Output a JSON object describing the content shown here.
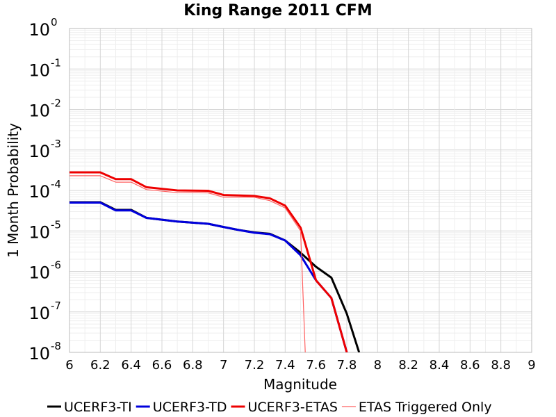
{
  "chart_data": {
    "type": "line",
    "title": "King Range 2011 CFM",
    "xlabel": "Magnitude",
    "ylabel": "1 Month Probability",
    "xlim": [
      6,
      9
    ],
    "ylim": [
      1e-08,
      1
    ],
    "y_scale": "log",
    "grid": true,
    "legend_position": "bottom",
    "x_ticks": [
      6,
      6.2,
      6.4,
      6.6,
      6.8,
      7,
      7.2,
      7.4,
      7.6,
      7.8,
      8,
      8.2,
      8.4,
      8.6,
      8.8,
      9
    ],
    "x_tick_labels": [
      "6",
      "6.2",
      "6.4",
      "6.6",
      "6.8",
      "7",
      "7.2",
      "7.4",
      "7.6",
      "7.8",
      "8",
      "8.2",
      "8.4",
      "8.6",
      "8.8",
      "9"
    ],
    "y_tick_exponents": [
      "0",
      "-1",
      "-2",
      "-3",
      "-4",
      "-5",
      "-6",
      "-7",
      "-8"
    ],
    "y_tick_base": "10",
    "series": [
      {
        "name": "UCERF3-TI",
        "color": "#000000",
        "width": 3,
        "x": [
          6.0,
          6.2,
          6.3,
          6.4,
          6.5,
          6.7,
          6.9,
          7.0,
          7.1,
          7.2,
          7.3,
          7.4,
          7.5,
          7.6,
          7.7,
          7.8,
          7.88
        ],
        "y": [
          5.1e-05,
          5.1e-05,
          3.3e-05,
          3.3e-05,
          2.1e-05,
          1.7e-05,
          1.5e-05,
          1.25e-05,
          1.05e-05,
          9.2e-06,
          8.5e-06,
          5.8e-06,
          2.9e-06,
          1.3e-06,
          7e-07,
          9e-08,
          1e-08
        ]
      },
      {
        "name": "UCERF3-TD",
        "color": "#0000dd",
        "width": 3,
        "x": [
          6.0,
          6.2,
          6.3,
          6.4,
          6.5,
          6.7,
          6.9,
          7.0,
          7.1,
          7.2,
          7.3,
          7.4,
          7.5,
          7.6,
          7.7,
          7.8
        ],
        "y": [
          5e-05,
          5e-05,
          3.2e-05,
          3.2e-05,
          2.1e-05,
          1.7e-05,
          1.5e-05,
          1.25e-05,
          1.05e-05,
          9e-06,
          8.3e-06,
          5.8e-06,
          2.5e-06,
          6e-07,
          2.2e-07,
          1e-08
        ]
      },
      {
        "name": "UCERF3-ETAS",
        "color": "#ee0000",
        "width": 3,
        "x": [
          6.0,
          6.2,
          6.3,
          6.4,
          6.5,
          6.7,
          6.9,
          7.0,
          7.1,
          7.2,
          7.3,
          7.4,
          7.5,
          7.6,
          7.7,
          7.8
        ],
        "y": [
          0.00028,
          0.00028,
          0.00019,
          0.00019,
          0.00012,
          0.0001,
          9.8e-05,
          7.7e-05,
          7.5e-05,
          7.3e-05,
          6.4e-05,
          4.2e-05,
          1.2e-05,
          6e-07,
          2.2e-07,
          1e-08
        ]
      },
      {
        "name": "ETAS Triggered Only",
        "color": "#ff6060",
        "width": 1.2,
        "x": [
          6.0,
          6.2,
          6.3,
          6.4,
          6.5,
          6.7,
          6.9,
          7.0,
          7.1,
          7.2,
          7.3,
          7.4,
          7.5,
          7.53
        ],
        "y": [
          0.00023,
          0.00023,
          0.00016,
          0.00016,
          0.000105,
          8.8e-05,
          8.7e-05,
          6.8e-05,
          6.8e-05,
          6.8e-05,
          5.6e-05,
          3.7e-05,
          1e-05,
          1e-08
        ]
      }
    ]
  }
}
